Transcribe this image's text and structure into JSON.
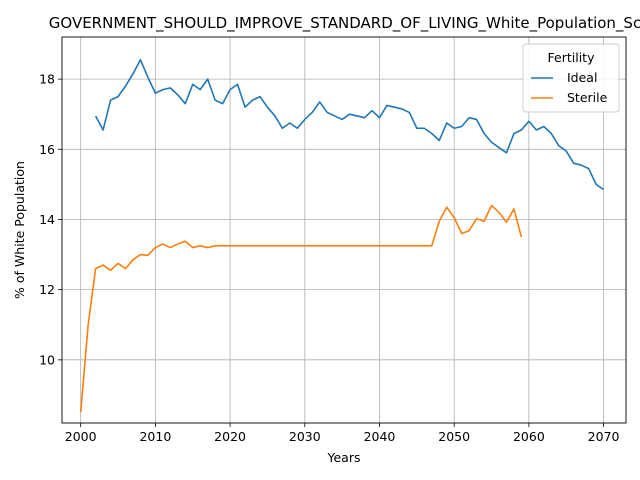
{
  "chart_data": {
    "type": "line",
    "title": "GOVERNMENT_SHOULD_IMPROVE_STANDARD_OF_LIVING_White_Population_Sc",
    "xlabel": "Years",
    "ylabel": "% of White Population",
    "xlim": [
      1997.5,
      2073.0
    ],
    "ylim": [
      8.2,
      19.2
    ],
    "xticks": [
      2000,
      2010,
      2020,
      2030,
      2040,
      2050,
      2060,
      2070
    ],
    "yticks": [
      10,
      12,
      14,
      16,
      18
    ],
    "grid": true,
    "legend": {
      "title": "Fertility",
      "placement": "top-right"
    },
    "colors": {
      "Ideal": "#1f77b4",
      "Sterile": "#ff7f0e"
    },
    "series": [
      {
        "name": "Ideal",
        "x": [
          2002,
          2003,
          2004,
          2005,
          2006,
          2007,
          2008,
          2009,
          2010,
          2011,
          2012,
          2013,
          2014,
          2015,
          2016,
          2017,
          2018,
          2019,
          2020,
          2021,
          2022,
          2023,
          2024,
          2025,
          2026,
          2027,
          2028,
          2029,
          2030,
          2031,
          2032,
          2033,
          2034,
          2035,
          2036,
          2037,
          2038,
          2039,
          2040,
          2041,
          2042,
          2043,
          2044,
          2045,
          2046,
          2047,
          2048,
          2049,
          2050,
          2051,
          2052,
          2053,
          2054,
          2055,
          2056,
          2057,
          2058,
          2059,
          2060,
          2061,
          2062,
          2063,
          2064,
          2065,
          2066,
          2067,
          2068,
          2069,
          2070
        ],
        "values": [
          16.95,
          16.55,
          17.4,
          17.5,
          17.8,
          18.15,
          18.55,
          18.05,
          17.6,
          17.7,
          17.75,
          17.55,
          17.3,
          17.85,
          17.7,
          18.0,
          17.4,
          17.3,
          17.7,
          17.85,
          17.2,
          17.4,
          17.5,
          17.2,
          16.95,
          16.6,
          16.75,
          16.6,
          16.85,
          17.05,
          17.35,
          17.05,
          16.95,
          16.85,
          17.0,
          16.95,
          16.9,
          17.1,
          16.9,
          17.25,
          17.2,
          17.15,
          17.05,
          16.6,
          16.6,
          16.45,
          16.25,
          16.75,
          16.6,
          16.65,
          16.9,
          16.85,
          16.45,
          16.2,
          16.05,
          15.9,
          16.45,
          16.55,
          16.8,
          16.55,
          16.65,
          16.45,
          16.1,
          15.95,
          15.6,
          15.55,
          15.45,
          15.0,
          14.85
        ]
      },
      {
        "name": "Sterile",
        "x": [
          2000,
          2001,
          2002,
          2003,
          2004,
          2005,
          2006,
          2007,
          2008,
          2009,
          2010,
          2011,
          2012,
          2013,
          2014,
          2015,
          2016,
          2017,
          2018,
          2019,
          2020,
          2021,
          2022,
          2023,
          2024,
          2025,
          2026,
          2027,
          2028,
          2029,
          2030,
          2031,
          2032,
          2033,
          2034,
          2035,
          2036,
          2037,
          2038,
          2039,
          2040,
          2041,
          2042,
          2043,
          2044,
          2045,
          2046,
          2047,
          2048,
          2049,
          2050,
          2051,
          2052,
          2053,
          2054,
          2055,
          2056,
          2057,
          2058,
          2059
        ],
        "values": [
          8.5,
          11.0,
          12.6,
          12.7,
          12.55,
          12.75,
          12.6,
          12.85,
          13.0,
          12.98,
          13.2,
          13.3,
          13.2,
          13.3,
          13.38,
          13.2,
          13.25,
          13.2,
          13.25,
          13.25,
          13.25,
          13.25,
          13.25,
          13.25,
          13.25,
          13.25,
          13.25,
          13.25,
          13.25,
          13.25,
          13.25,
          13.25,
          13.25,
          13.25,
          13.25,
          13.25,
          13.25,
          13.25,
          13.25,
          13.25,
          13.25,
          13.25,
          13.25,
          13.25,
          13.25,
          13.25,
          13.25,
          13.25,
          13.95,
          14.35,
          14.05,
          13.6,
          13.68,
          14.02,
          13.95,
          14.4,
          14.2,
          13.92,
          14.3,
          13.5
        ]
      }
    ]
  }
}
